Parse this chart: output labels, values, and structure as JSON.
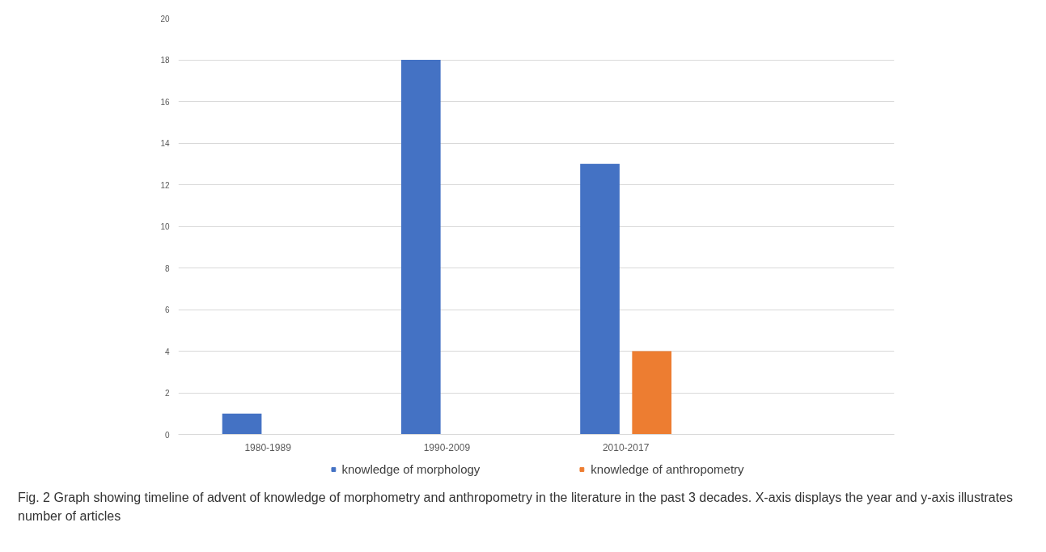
{
  "chart_data": {
    "type": "bar",
    "categories": [
      "1980-1989",
      "1990-2009",
      "2010-2017",
      null
    ],
    "series": [
      {
        "name": "knowledge of morphology",
        "color": "#4472c4",
        "values": [
          1,
          18,
          13,
          null
        ]
      },
      {
        "name": "knowledge of anthropometry",
        "color": "#ed7d31",
        "values": [
          0,
          0,
          4,
          null
        ]
      }
    ],
    "ylim": [
      0,
      20
    ],
    "yticks": [
      0,
      2,
      4,
      6,
      8,
      10,
      12,
      14,
      16,
      18,
      20
    ],
    "grid": "y",
    "legend": "bottom",
    "annotations": [
      "Fig. 2 Graph showing timeline of advent of knowledge of morphometry and anthropometry in the literature in the past 3 decades. X-axis displays the year and y-axis illustrates number of articles"
    ]
  }
}
